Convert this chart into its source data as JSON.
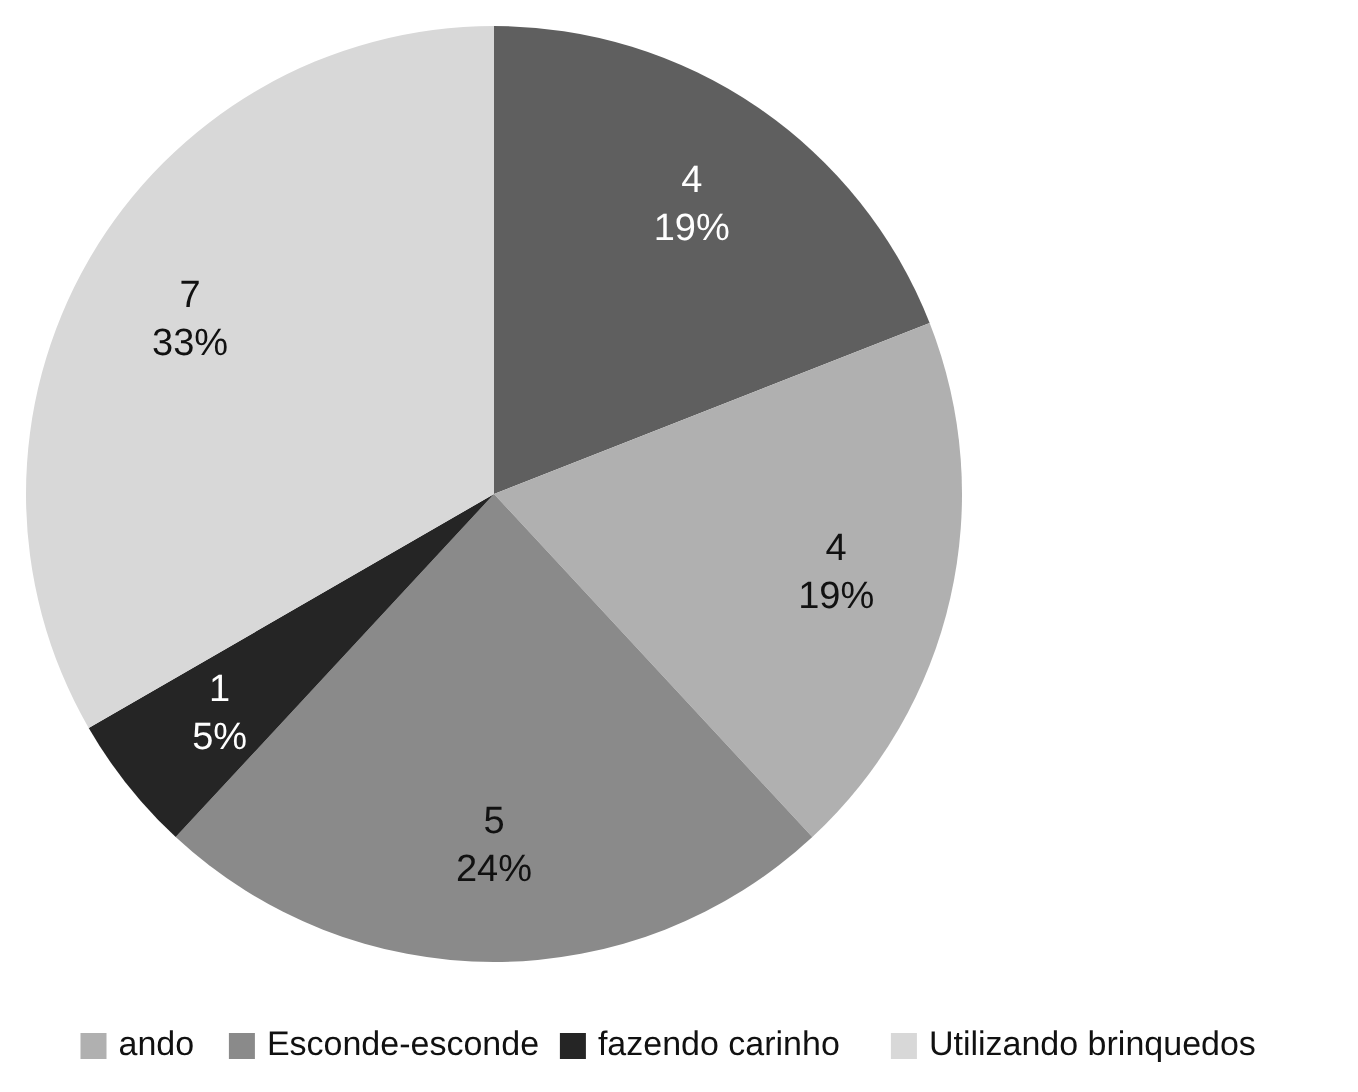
{
  "chart_data": {
    "type": "pie",
    "categories": [
      null,
      "ando",
      "Esconde-esconde",
      "fazendo carinho",
      "Utilizando brinquedos"
    ],
    "values": [
      4,
      4,
      5,
      1,
      7
    ],
    "colors": [
      "#5f5f5f",
      "#b0b0b0",
      "#8a8a8a",
      "#252525",
      "#d8d8d8"
    ],
    "value_labels": [
      "4\n19%",
      "4\n19%",
      "5\n24%",
      "1\n5%",
      "7\n33%"
    ],
    "legend": "bottom"
  }
}
